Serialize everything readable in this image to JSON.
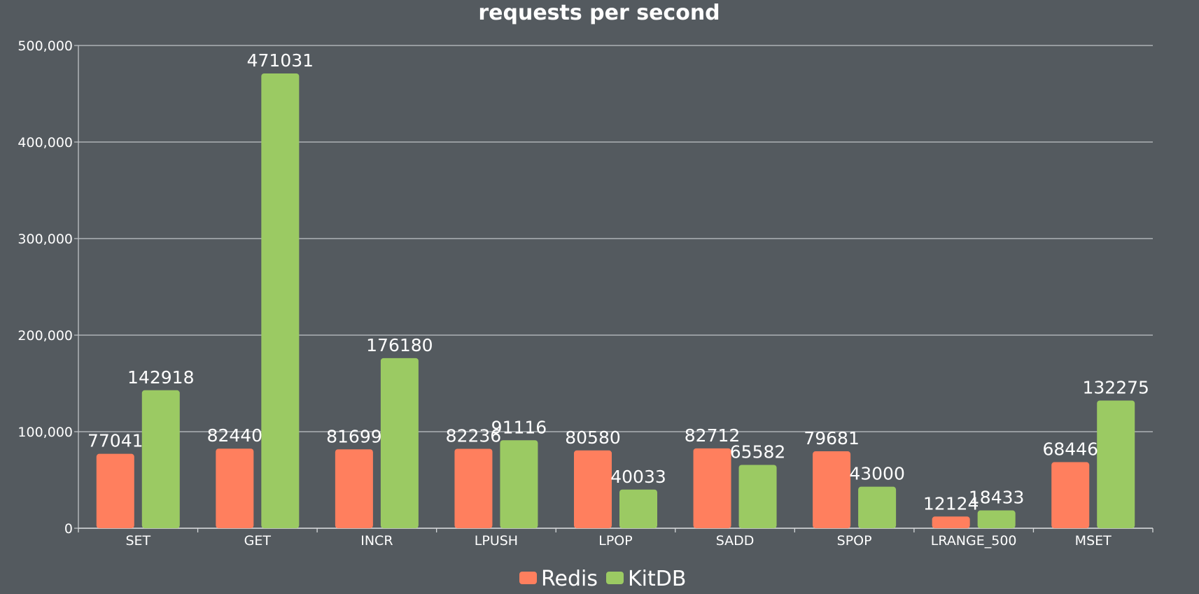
{
  "chart_data": {
    "type": "bar",
    "title": "requests per second",
    "xlabel": "",
    "ylabel": "",
    "categories": [
      "SET",
      "GET",
      "INCR",
      "LPUSH",
      "LPOP",
      "SADD",
      "SPOP",
      "LRANGE_500",
      "MSET"
    ],
    "series": [
      {
        "name": "Redis",
        "color": "#ff7f5e",
        "values": [
          77041,
          82440,
          81699,
          82236,
          80580,
          82712,
          79681,
          12124,
          68446
        ]
      },
      {
        "name": "KitDB",
        "color": "#9bca63",
        "values": [
          142918,
          471031,
          176180,
          91116,
          40033,
          65582,
          43000,
          18433,
          132275
        ]
      }
    ],
    "ylim": [
      0,
      500000
    ],
    "yticks": [
      "0",
      "100,000",
      "200,000",
      "300,000",
      "400,000",
      "500,000"
    ],
    "grid": true,
    "legend_position": "bottom-center",
    "data_labels": true
  }
}
